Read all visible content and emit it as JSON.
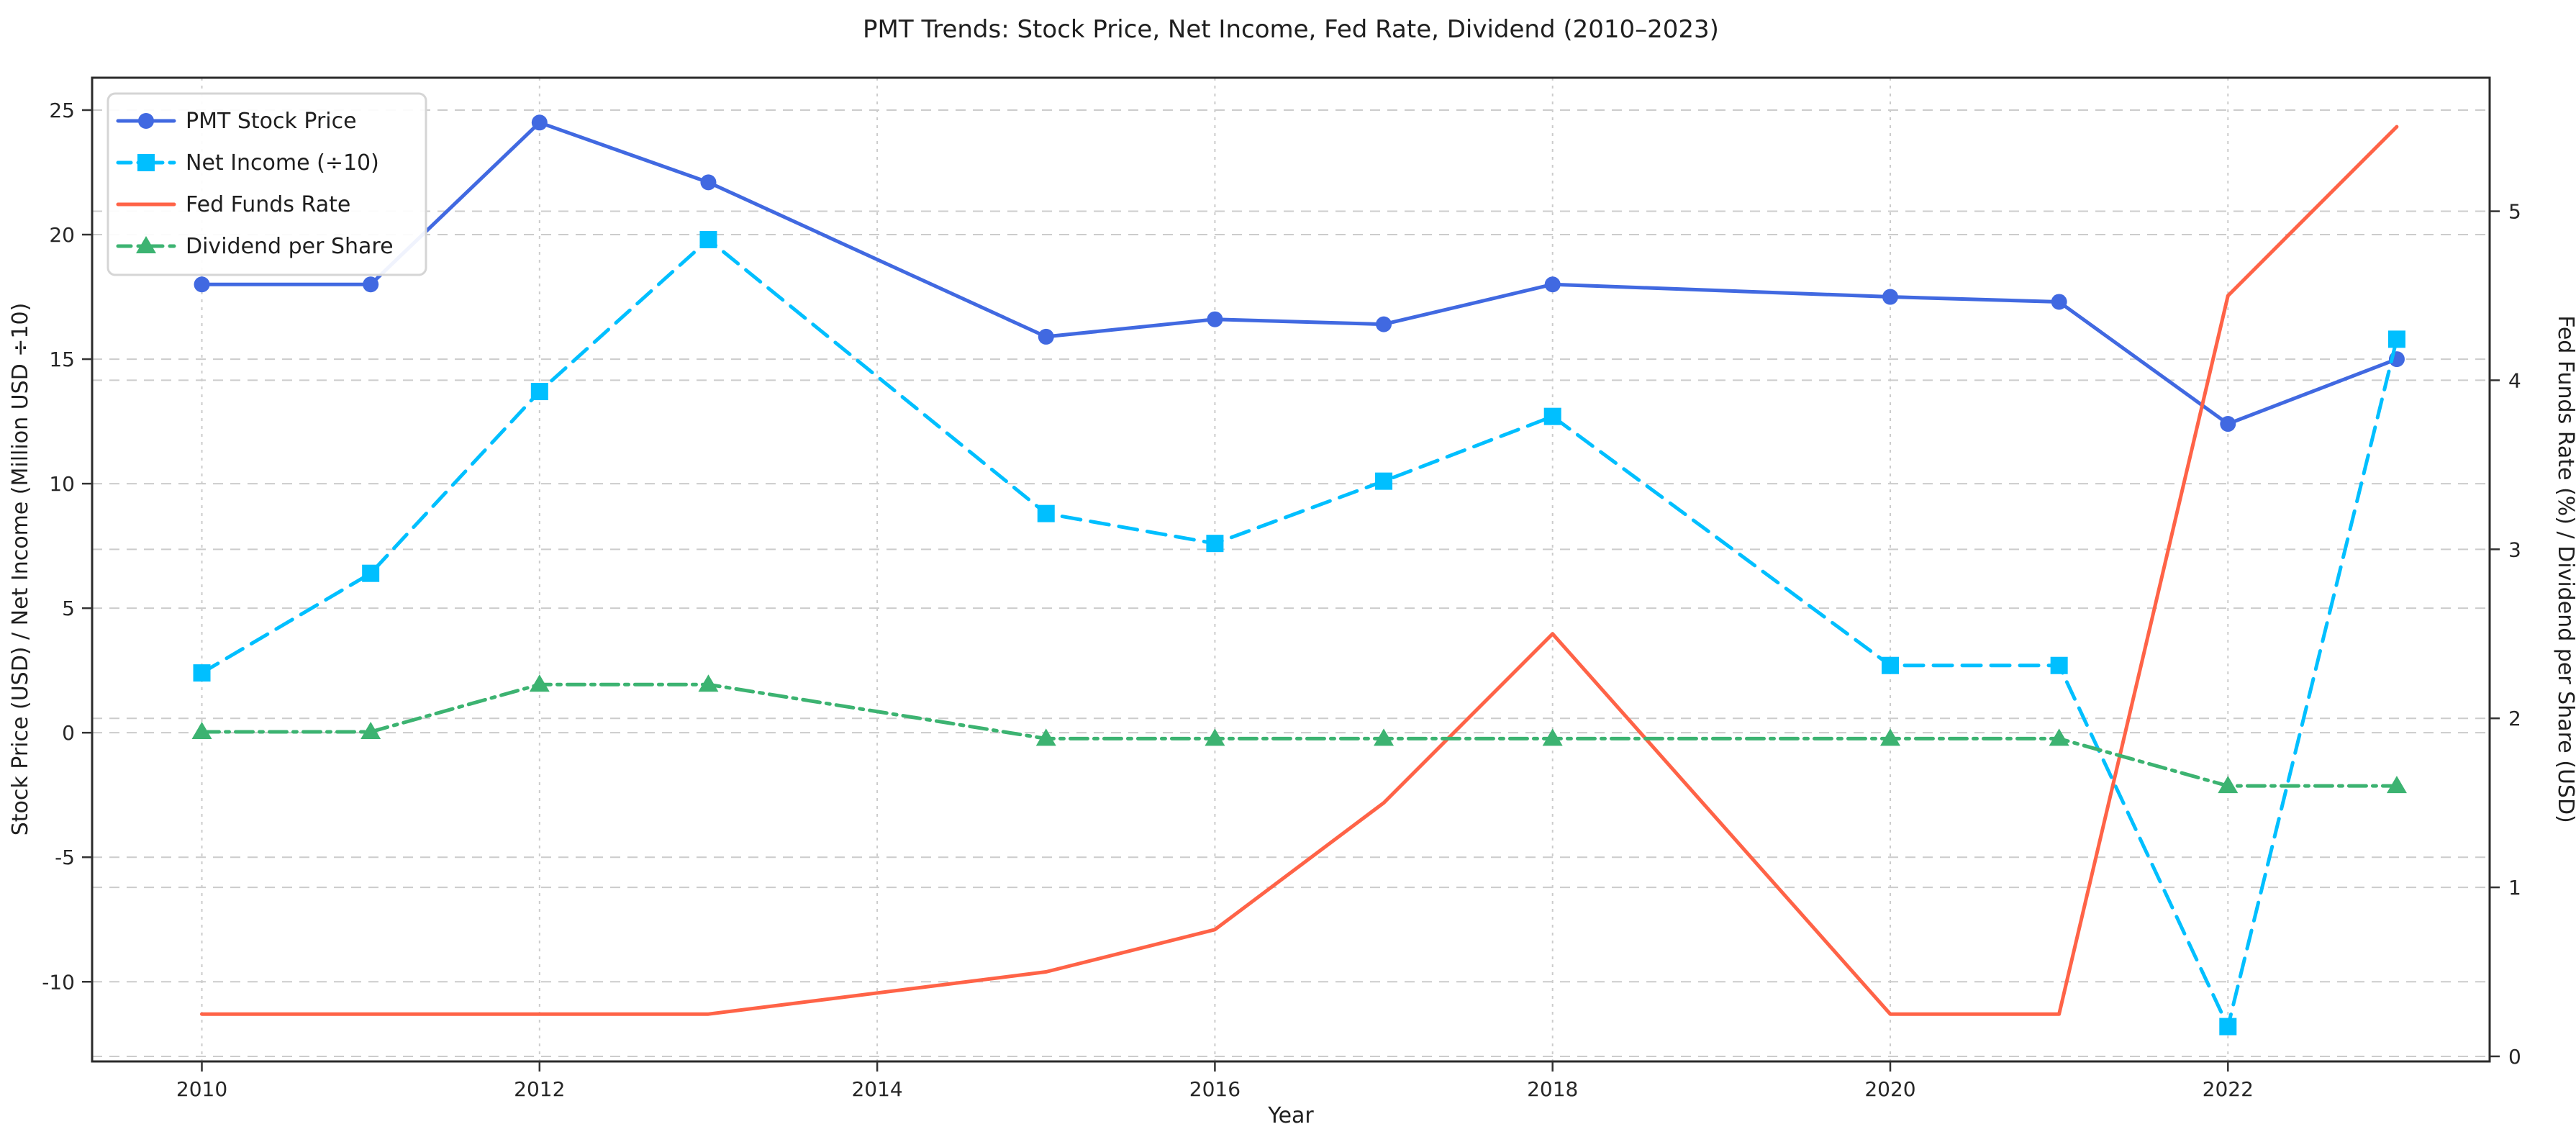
{
  "figure": {
    "title": "PMT Trends: Stock Price, Net Income, Fed Rate, Dividend (2010–2023)",
    "background": "#ffffff",
    "grid_color": "#cccccc",
    "spine_color": "#2b2b2b",
    "tick_color": "#333333",
    "legend_border_color": "#d5d5d5"
  },
  "chart_data": {
    "type": "line",
    "title": "PMT Trends: Stock Price, Net Income, Fed Rate, Dividend (2010–2023)",
    "xlabel": "Year",
    "ylabel_left": "Stock Price (USD) / Net Income (Million USD ÷10)",
    "ylabel_right": "Fed Funds Rate (%) / Dividend per Share (USD)",
    "x": [
      2010,
      2011,
      2012,
      2013,
      2015,
      2016,
      2017,
      2018,
      2020,
      2021,
      2022,
      2023
    ],
    "x_note": "no data points for 2014 and 2019; lines connect straight across",
    "xticks": [
      2010,
      2012,
      2014,
      2016,
      2018,
      2020,
      2022
    ],
    "yticks_left": [
      25,
      20,
      15,
      10,
      5,
      0,
      -5,
      -10
    ],
    "yticks_right": [
      5,
      4,
      3,
      2,
      1,
      0
    ],
    "xlim": [
      2009.35,
      2023.55
    ],
    "ylim_left": [
      -13.2,
      26.3
    ],
    "ylim_right": [
      -0.03,
      5.79
    ],
    "grid": true,
    "legend_position": "upper-left",
    "series": [
      {
        "name": "PMT Stock Price",
        "axis": "left",
        "color": "#4169E1",
        "style": "solid",
        "marker": "circle",
        "values": [
          18.0,
          18.0,
          24.5,
          22.1,
          15.9,
          16.6,
          16.4,
          18.0,
          17.5,
          17.3,
          12.4,
          15.0
        ]
      },
      {
        "name": "Net Income (÷10)",
        "axis": "left",
        "color": "#00BFFF",
        "style": "dashed",
        "marker": "square",
        "values": [
          2.4,
          6.4,
          13.7,
          19.8,
          8.8,
          7.6,
          10.1,
          12.7,
          2.7,
          2.7,
          -11.8,
          15.8
        ]
      },
      {
        "name": "Fed Funds Rate",
        "axis": "right",
        "color": "#FF6347",
        "style": "solid",
        "marker": "none",
        "values": [
          0.25,
          0.25,
          0.25,
          0.25,
          0.5,
          0.75,
          1.5,
          2.5,
          0.25,
          0.25,
          4.5,
          5.5
        ]
      },
      {
        "name": "Dividend per Share",
        "axis": "right",
        "color": "#3CB371",
        "style": "dashdot",
        "marker": "triangle",
        "values": [
          1.92,
          1.92,
          2.2,
          2.2,
          1.88,
          1.88,
          1.88,
          1.88,
          1.88,
          1.88,
          1.6,
          1.6
        ]
      }
    ]
  }
}
